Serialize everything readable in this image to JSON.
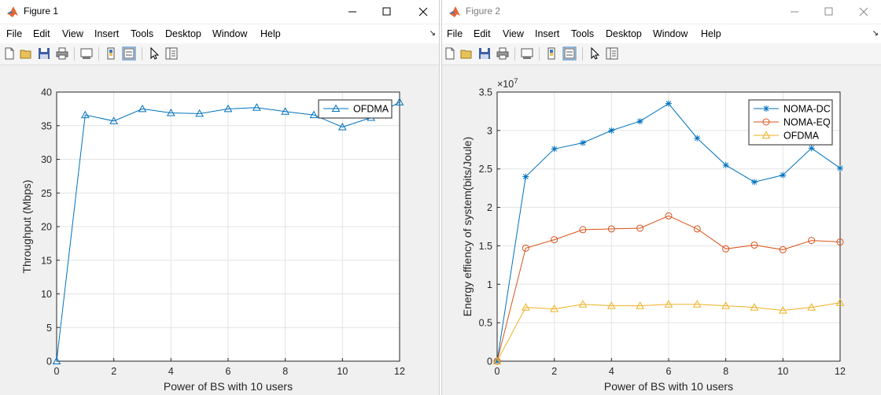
{
  "windows": [
    {
      "id": "win1",
      "title": "Figure 1",
      "menu": [
        "File",
        "Edit",
        "View",
        "Insert",
        "Tools",
        "Desktop",
        "Window",
        "Help"
      ],
      "chart_data": {
        "type": "line",
        "x": [
          0,
          1,
          2,
          3,
          4,
          5,
          6,
          7,
          8,
          9,
          10,
          11,
          12
        ],
        "xlabel": "Power of BS with 10 users",
        "ylabel": "Throughput (Mbps)",
        "xlim": [
          0,
          12
        ],
        "ylim": [
          0,
          40
        ],
        "xticks": [
          "0",
          "2",
          "4",
          "6",
          "8",
          "10",
          "12"
        ],
        "yticks": [
          "0",
          "5",
          "10",
          "15",
          "20",
          "25",
          "30",
          "35",
          "40"
        ],
        "grid": true,
        "legend": "top-right",
        "series": [
          {
            "name": "OFDMA",
            "color": "#0072BD",
            "marker": "triangle",
            "values": [
              0,
              36.6,
              35.7,
              37.5,
              36.9,
              36.8,
              37.5,
              37.7,
              37.1,
              36.6,
              34.8,
              36.2,
              38.5
            ]
          }
        ]
      }
    },
    {
      "id": "win2",
      "title": "Figure 2",
      "menu": [
        "File",
        "Edit",
        "View",
        "Insert",
        "Tools",
        "Desktop",
        "Window",
        "Help"
      ],
      "chart_data": {
        "type": "line",
        "x": [
          0,
          1,
          2,
          3,
          4,
          5,
          6,
          7,
          8,
          9,
          10,
          11,
          12
        ],
        "xlabel": "Power of BS with 10 users",
        "ylabel": "Energy effiency of system(bits/Joule)",
        "xlim": [
          0,
          12
        ],
        "ylim": [
          0,
          35000000
        ],
        "exponent_base": "×10",
        "exponent_power": "7",
        "xticks": [
          "0",
          "2",
          "4",
          "6",
          "8",
          "10",
          "12"
        ],
        "yticks": [
          "0",
          "0.5",
          "1",
          "1.5",
          "2",
          "2.5",
          "3",
          "3.5"
        ],
        "grid": true,
        "legend": "top-right",
        "series": [
          {
            "name": "NOMA-DC",
            "color": "#0072BD",
            "marker": "star",
            "values": [
              0,
              24000000,
              27600000,
              28400000,
              30000000,
              31200000,
              33500000,
              29000000,
              25500000,
              23300000,
              24200000,
              27700000,
              25100000
            ]
          },
          {
            "name": "NOMA-EQ",
            "color": "#D95319",
            "marker": "circle",
            "values": [
              0,
              14700000,
              15800000,
              17100000,
              17200000,
              17300000,
              18900000,
              17200000,
              14600000,
              15100000,
              14500000,
              15700000,
              15500000
            ]
          },
          {
            "name": "OFDMA",
            "color": "#EDB120",
            "marker": "triangle",
            "values": [
              0,
              7000000,
              6800000,
              7400000,
              7200000,
              7200000,
              7400000,
              7400000,
              7200000,
              7000000,
              6600000,
              7000000,
              7600000
            ]
          }
        ]
      }
    }
  ]
}
